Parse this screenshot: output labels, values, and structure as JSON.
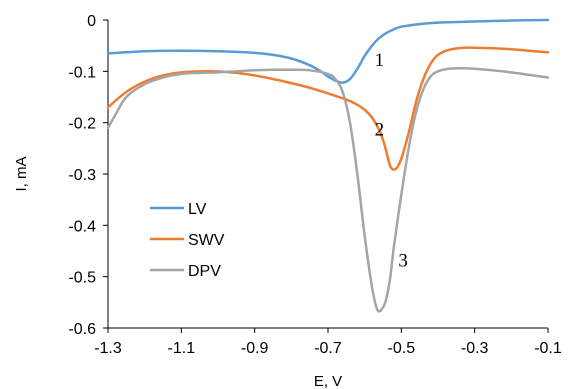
{
  "chart_data": {
    "type": "line",
    "title": "",
    "xlabel": "E, V",
    "ylabel": "I, mA",
    "xlim": [
      -1.3,
      -0.1
    ],
    "ylim": [
      -0.6,
      0
    ],
    "xticks": [
      -1.3,
      -1.1,
      -0.9,
      -0.7,
      -0.5,
      -0.3,
      -0.1
    ],
    "xtick_labels": [
      "-1.3",
      "-1.1",
      "-0.9",
      "-0.7",
      "-0.5",
      "-0.3",
      "-0.1"
    ],
    "yticks": [
      0,
      -0.1,
      -0.2,
      -0.3,
      -0.4,
      -0.5,
      -0.6
    ],
    "ytick_labels": [
      "0",
      "-0.1",
      "-0.2",
      "-0.3",
      "-0.4",
      "-0.5",
      "-0.6"
    ],
    "grid": false,
    "legend_position": "lower-left",
    "series": [
      {
        "name": "LV",
        "color": "#5B9BD5",
        "x": [
          -1.3,
          -1.2,
          -1.1,
          -1.0,
          -0.9,
          -0.85,
          -0.8,
          -0.75,
          -0.72,
          -0.7,
          -0.68,
          -0.66,
          -0.64,
          -0.62,
          -0.6,
          -0.58,
          -0.56,
          -0.54,
          -0.52,
          -0.5,
          -0.45,
          -0.4,
          -0.3,
          -0.2,
          -0.1
        ],
        "y": [
          -0.065,
          -0.061,
          -0.06,
          -0.061,
          -0.064,
          -0.068,
          -0.075,
          -0.088,
          -0.1,
          -0.11,
          -0.118,
          -0.122,
          -0.115,
          -0.095,
          -0.07,
          -0.05,
          -0.035,
          -0.025,
          -0.018,
          -0.013,
          -0.008,
          -0.005,
          -0.003,
          -0.001,
          0
        ]
      },
      {
        "name": "SWV",
        "color": "#ED7D31",
        "x": [
          -1.3,
          -1.25,
          -1.2,
          -1.15,
          -1.1,
          -1.05,
          -1.0,
          -0.95,
          -0.9,
          -0.85,
          -0.8,
          -0.75,
          -0.7,
          -0.65,
          -0.62,
          -0.6,
          -0.58,
          -0.56,
          -0.545,
          -0.53,
          -0.515,
          -0.5,
          -0.48,
          -0.46,
          -0.44,
          -0.42,
          -0.4,
          -0.37,
          -0.33,
          -0.3,
          -0.25,
          -0.2,
          -0.15,
          -0.1
        ],
        "y": [
          -0.17,
          -0.14,
          -0.12,
          -0.108,
          -0.102,
          -0.1,
          -0.1,
          -0.103,
          -0.108,
          -0.115,
          -0.123,
          -0.132,
          -0.143,
          -0.155,
          -0.165,
          -0.175,
          -0.19,
          -0.215,
          -0.245,
          -0.285,
          -0.29,
          -0.27,
          -0.22,
          -0.16,
          -0.115,
          -0.085,
          -0.068,
          -0.058,
          -0.054,
          -0.054,
          -0.055,
          -0.057,
          -0.06,
          -0.063
        ]
      },
      {
        "name": "DPV",
        "color": "#A5A5A5",
        "x": [
          -1.3,
          -1.28,
          -1.25,
          -1.2,
          -1.15,
          -1.1,
          -1.05,
          -1.0,
          -0.95,
          -0.9,
          -0.85,
          -0.8,
          -0.75,
          -0.7,
          -0.68,
          -0.66,
          -0.64,
          -0.62,
          -0.6,
          -0.58,
          -0.565,
          -0.55,
          -0.54,
          -0.53,
          -0.52,
          -0.5,
          -0.48,
          -0.46,
          -0.44,
          -0.42,
          -0.4,
          -0.37,
          -0.33,
          -0.3,
          -0.25,
          -0.2,
          -0.15,
          -0.1
        ],
        "y": [
          -0.21,
          -0.185,
          -0.15,
          -0.125,
          -0.112,
          -0.105,
          -0.103,
          -0.102,
          -0.1,
          -0.098,
          -0.097,
          -0.097,
          -0.098,
          -0.105,
          -0.115,
          -0.14,
          -0.2,
          -0.3,
          -0.42,
          -0.52,
          -0.565,
          -0.56,
          -0.54,
          -0.5,
          -0.44,
          -0.34,
          -0.25,
          -0.18,
          -0.135,
          -0.11,
          -0.1,
          -0.095,
          -0.094,
          -0.095,
          -0.098,
          -0.102,
          -0.107,
          -0.112
        ]
      }
    ],
    "annotations": [
      {
        "text": "1",
        "x": -0.56,
        "y": -0.09
      },
      {
        "text": "2",
        "x": -0.56,
        "y": -0.225
      },
      {
        "text": "3",
        "x": -0.495,
        "y": -0.48
      }
    ]
  }
}
